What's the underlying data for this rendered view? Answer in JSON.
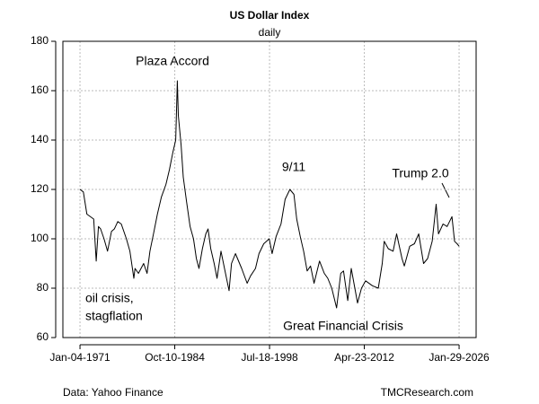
{
  "chart_data": {
    "type": "line",
    "title": "US Dollar Index",
    "subtitle": "daily",
    "x": [
      "1971-01-04",
      "1971-07-01",
      "1972-01-03",
      "1973-01-02",
      "1973-05-15",
      "1973-09-10",
      "1974-01-02",
      "1974-07-01",
      "1975-01-02",
      "1975-08-01",
      "1976-01-02",
      "1976-07-01",
      "1977-01-03",
      "1977-10-03",
      "1978-04-03",
      "1978-10-30",
      "1979-01-02",
      "1979-07-02",
      "1980-04-01",
      "1980-10-01",
      "1981-03-02",
      "1981-10-01",
      "1982-04-01",
      "1982-11-01",
      "1983-07-01",
      "1984-01-03",
      "1984-07-02",
      "1984-11-30",
      "1985-02-25",
      "1985-04-15",
      "1985-09-10",
      "1986-01-02",
      "1986-07-01",
      "1987-01-02",
      "1987-07-01",
      "1987-12-01",
      "1988-04-15",
      "1988-10-15",
      "1989-04-15",
      "1989-08-10",
      "1990-01-02",
      "1990-07-02",
      "1990-11-30",
      "1991-07-01",
      "1992-01-02",
      "1992-09-01",
      "1993-01-04",
      "1993-08-02",
      "1994-07-01",
      "1995-04-18",
      "1995-10-16",
      "1996-07-01",
      "1997-01-02",
      "1997-09-15",
      "1998-07-01",
      "1998-11-30",
      "1999-07-01",
      "2000-03-15",
      "2000-10-20",
      "2001-07-02",
      "2002-01-31",
      "2002-07-01",
      "2003-01-02",
      "2003-07-01",
      "2004-01-02",
      "2004-07-01",
      "2005-01-03",
      "2005-10-20",
      "2006-07-03",
      "2007-01-02",
      "2007-08-01",
      "2008-04-15",
      "2008-11-20",
      "2009-04-15",
      "2009-11-25",
      "2010-06-01",
      "2011-04-29",
      "2011-11-25",
      "2012-07-02",
      "2013-07-01",
      "2014-05-06",
      "2014-12-01",
      "2015-03-13",
      "2015-10-15",
      "2016-07-01",
      "2016-12-30",
      "2017-10-16",
      "2018-02-15",
      "2018-11-30",
      "2019-08-01",
      "2020-03-19",
      "2020-12-01",
      "2021-07-01",
      "2022-03-01",
      "2022-09-27",
      "2023-02-01",
      "2023-10-03",
      "2024-05-01",
      "2025-01-13",
      "2025-06-02",
      "2025-10-15",
      "2026-01-29"
    ],
    "values": [
      120,
      119,
      110,
      108,
      91,
      105,
      104,
      100,
      95,
      103,
      104,
      107,
      106,
      100,
      95,
      84,
      88,
      86,
      90,
      86,
      95,
      103,
      110,
      117,
      122,
      128,
      135,
      140,
      164,
      150,
      138,
      125,
      115,
      105,
      100,
      92,
      88,
      96,
      102,
      104,
      96,
      90,
      84,
      95,
      88,
      79,
      90,
      94,
      88,
      82,
      85,
      88,
      94,
      98,
      100,
      94,
      101,
      106,
      116,
      120,
      118,
      108,
      101,
      95,
      87,
      89,
      82,
      91,
      86,
      84,
      80,
      72,
      86,
      87,
      75,
      88,
      74,
      80,
      83,
      81,
      80,
      90,
      99,
      96,
      95,
      102,
      92,
      89,
      97,
      98,
      102,
      90,
      92,
      99,
      114,
      102,
      106,
      105,
      109,
      99,
      98,
      97
    ],
    "color": "#000000",
    "xlim": [
      "1968-07-10",
      "2028-07-20"
    ],
    "xticks": [
      {
        "value": "1971-01-04",
        "label": "Jan-04-1971"
      },
      {
        "value": "1984-10-10",
        "label": "Oct-10-1984"
      },
      {
        "value": "1998-07-18",
        "label": "Jul-18-1998"
      },
      {
        "value": "2012-04-23",
        "label": "Apr-23-2012"
      },
      {
        "value": "2026-01-29",
        "label": "Jan-29-2026"
      }
    ],
    "ylim": [
      60,
      180
    ],
    "yticks": [
      60,
      80,
      100,
      120,
      140,
      160,
      180
    ],
    "grid": true,
    "annotations": [
      "Plaza Accord",
      "9/11",
      "Trump 2.0",
      "oil crisis,",
      "stagflation",
      "Great Financial Crisis"
    ],
    "source": "Data: Yahoo Finance",
    "credit": "TMCResearch.com"
  }
}
